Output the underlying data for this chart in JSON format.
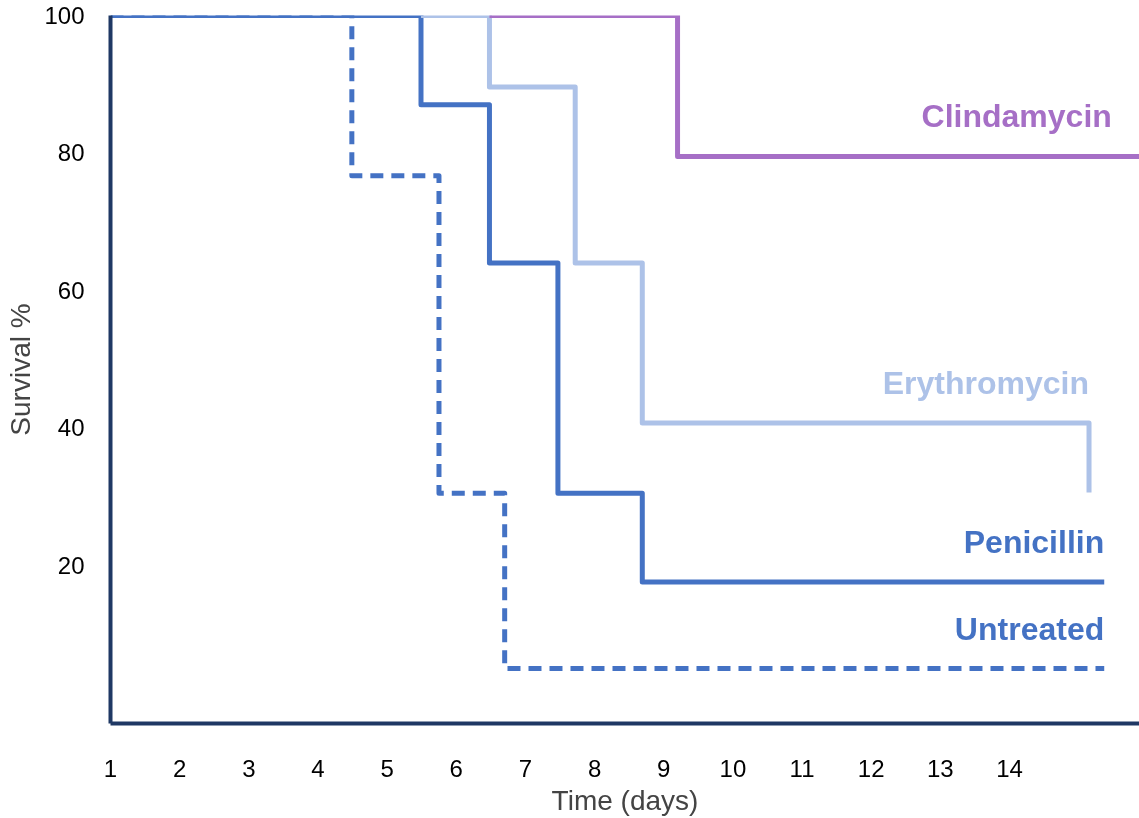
{
  "chart_data": {
    "type": "step",
    "xlabel": "Time (days)",
    "ylabel": "Survival %",
    "xlim": [
      1,
      15.88
    ],
    "ylim": [
      -3,
      100
    ],
    "xticks": [
      1,
      2,
      3,
      4,
      5,
      6,
      7,
      8,
      9,
      10,
      11,
      12,
      13,
      14
    ],
    "yticks": [
      20,
      40,
      60,
      80,
      100
    ],
    "grid": false,
    "series": [
      {
        "name": "Untreated",
        "color": "#4472c4",
        "line_style": "dashed",
        "x": [
          1,
          4.49,
          5.75,
          6.7,
          15.37
        ],
        "values": [
          100,
          76.7,
          30.5,
          5,
          5
        ]
      },
      {
        "name": "Penicillin",
        "color": "#4472c4",
        "line_style": "solid",
        "x": [
          1,
          5.49,
          6.48,
          7.47,
          8.69,
          15.37
        ],
        "values": [
          100,
          87,
          64,
          30.5,
          17.6,
          17.6
        ]
      },
      {
        "name": "Erythromycin",
        "color": "#adc2e8",
        "line_style": "solid",
        "x": [
          5.49,
          6.48,
          7.72,
          8.69,
          15.15,
          15.15
        ],
        "values": [
          100,
          89.6,
          64,
          40.7,
          40.7,
          30.6
        ]
      },
      {
        "name": "Clindamycin",
        "color": "#a66fc6",
        "line_style": "solid",
        "x": [
          6.48,
          9.2,
          15.88
        ],
        "values": [
          100,
          79.5,
          79.5
        ]
      }
    ]
  }
}
